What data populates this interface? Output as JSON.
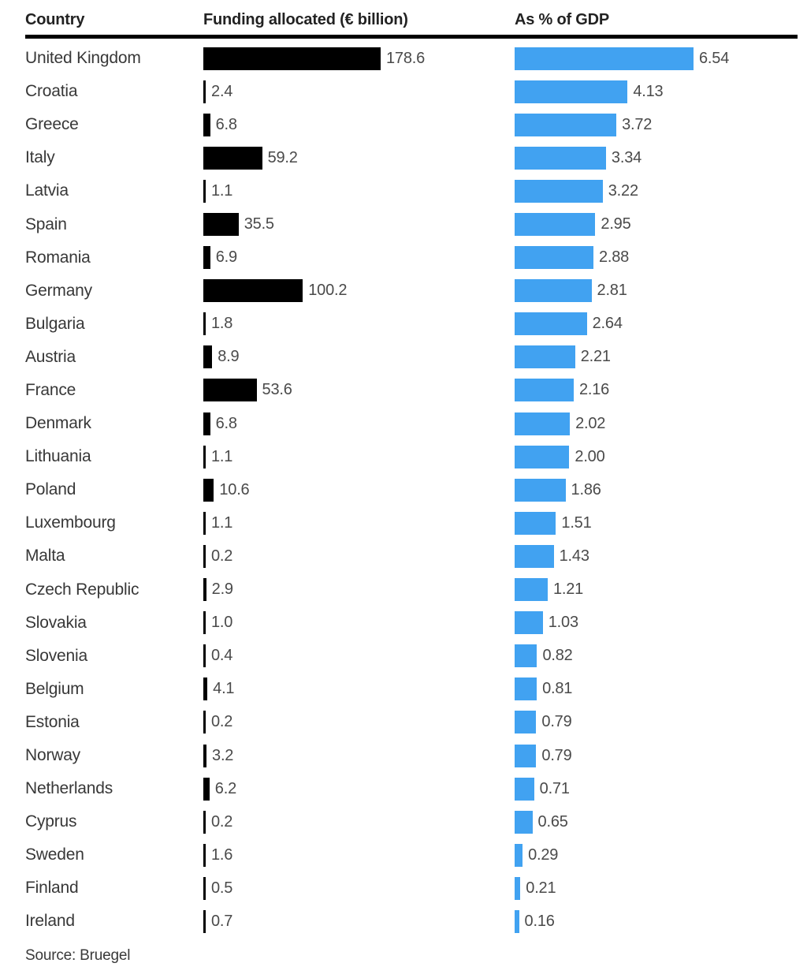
{
  "header": {
    "country_label": "Country",
    "funding_label": "Funding allocated (€ billion)",
    "gdp_label": "As % of GDP"
  },
  "source_text": "Source: Bruegel",
  "colors": {
    "funding_bar": "#000000",
    "gdp_bar": "#41a2f1"
  },
  "chart_data": {
    "type": "bar",
    "orientation": "horizontal",
    "title": "",
    "columns": [
      "Country",
      "Funding allocated (€ billion)",
      "As % of GDP"
    ],
    "categories": [
      "United Kingdom",
      "Croatia",
      "Greece",
      "Italy",
      "Latvia",
      "Spain",
      "Romania",
      "Germany",
      "Bulgaria",
      "Austria",
      "France",
      "Denmark",
      "Lithuania",
      "Poland",
      "Luxembourg",
      "Malta",
      "Czech Republic",
      "Slovakia",
      "Slovenia",
      "Belgium",
      "Estonia",
      "Norway",
      "Netherlands",
      "Cyprus",
      "Sweden",
      "Finland",
      "Ireland"
    ],
    "series": [
      {
        "name": "Funding allocated (€ billion)",
        "color": "#000000",
        "axis_max": 178.6,
        "values": [
          178.6,
          2.4,
          6.8,
          59.2,
          1.1,
          35.5,
          6.9,
          100.2,
          1.8,
          8.9,
          53.6,
          6.8,
          1.1,
          10.6,
          1.1,
          0.2,
          2.9,
          1.0,
          0.4,
          4.1,
          0.2,
          3.2,
          6.2,
          0.2,
          1.6,
          0.5,
          0.7
        ],
        "labels": [
          "178.6",
          "2.4",
          "6.8",
          "59.2",
          "1.1",
          "35.5",
          "6.9",
          "100.2",
          "1.8",
          "8.9",
          "53.6",
          "6.8",
          "1.1",
          "10.6",
          "1.1",
          "0.2",
          "2.9",
          "1.0",
          "0.4",
          "4.1",
          "0.2",
          "3.2",
          "6.2",
          "0.2",
          "1.6",
          "0.5",
          "0.7"
        ]
      },
      {
        "name": "As % of GDP",
        "color": "#41a2f1",
        "axis_max": 6.54,
        "values": [
          6.54,
          4.13,
          3.72,
          3.34,
          3.22,
          2.95,
          2.88,
          2.81,
          2.64,
          2.21,
          2.16,
          2.02,
          2.0,
          1.86,
          1.51,
          1.43,
          1.21,
          1.03,
          0.82,
          0.81,
          0.79,
          0.79,
          0.71,
          0.65,
          0.29,
          0.21,
          0.16
        ],
        "labels": [
          "6.54",
          "4.13",
          "3.72",
          "3.34",
          "3.22",
          "2.95",
          "2.88",
          "2.81",
          "2.64",
          "2.21",
          "2.16",
          "2.02",
          "2.00",
          "1.86",
          "1.51",
          "1.43",
          "1.21",
          "1.03",
          "0.82",
          "0.81",
          "0.79",
          "0.79",
          "0.71",
          "0.65",
          "0.29",
          "0.21",
          "0.16"
        ]
      }
    ],
    "legend": "none",
    "grid": false,
    "source": "Source: Bruegel"
  }
}
